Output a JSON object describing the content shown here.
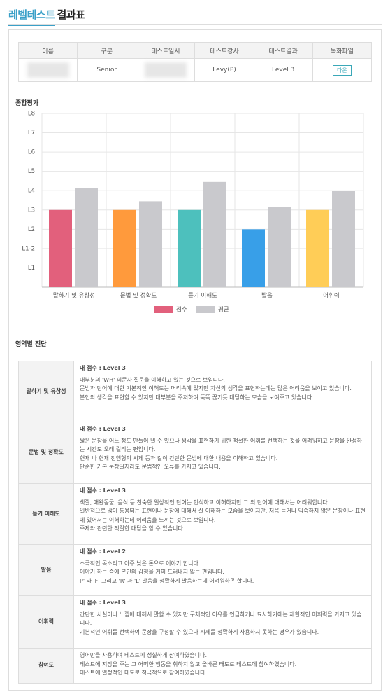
{
  "header": {
    "title_highlight": "레벨테스트",
    "title_rest": "결과표"
  },
  "info_table": {
    "headers": [
      "이름",
      "구분",
      "테스트일시",
      "테스트강사",
      "테스트결과",
      "녹화파일"
    ],
    "row": {
      "category": "Senior",
      "instructor": "Levy(P)",
      "result": "Level 3",
      "download_button": "다운"
    }
  },
  "chart_section_label": "종합평가",
  "chart_data": {
    "type": "bar",
    "categories": [
      "말하기 및 유창성",
      "문법 및 정확도",
      "듣기 이해도",
      "발음",
      "어휘력"
    ],
    "series": [
      {
        "name": "점수",
        "color": "#e2607c",
        "colors": [
          "#e2607c",
          "#ff9a3c",
          "#4dc0bd",
          "#389fe8",
          "#ffcd57"
        ],
        "values": [
          4,
          4,
          4,
          3,
          4
        ]
      },
      {
        "name": "평균",
        "color": "#c9c9cd",
        "values": [
          5.15,
          4.45,
          5.45,
          4.15,
          5.0
        ]
      }
    ],
    "ylim": [
      0,
      9
    ],
    "yticks": [
      {
        "value": 1,
        "label": "L1"
      },
      {
        "value": 2,
        "label": "L1-2"
      },
      {
        "value": 3,
        "label": "L2"
      },
      {
        "value": 4,
        "label": "L3"
      },
      {
        "value": 5,
        "label": "L4"
      },
      {
        "value": 6,
        "label": "L5"
      },
      {
        "value": 7,
        "label": "L6"
      },
      {
        "value": 8,
        "label": "L7"
      },
      {
        "value": 9,
        "label": "L8"
      }
    ],
    "grid": true,
    "legend": "bottom"
  },
  "diagnosis": {
    "title": "영역별 진단",
    "rows": [
      {
        "area": "말하기 및 유창성",
        "score": "내 점수 : Level 3",
        "lines": [
          "대부분의 'WH' 의문사 질문을 이해하고 있는 것으로 보입니다.",
          "문법과 단어에 대한 기본적인 이해도는 머리속에 있지만 자신의 생각을 표현하는데는 많은 어려움을 보이고 있습니다.",
          "본인의 생각을 표현할 수 있지만 대부분을 주저하며 뚝뚝 끊기듯 대답하는 모습을 보여주고 있습니다."
        ]
      },
      {
        "area": "문법 및 정확도",
        "score": "내 점수 : Level 3",
        "lines": [
          "짧은 문장을 어느 정도 만들어 낼 수 있으나 생각을 표현하기 위한 적절한 어휘를 선택하는 것을 어려워하고 문장을 완성하는 시간도 오래 걸리는 편입니다.",
          "현재 나 현재 진행형의 시제 등과 같이 간단한 문법에 대한 내용을 이해하고 있습니다.",
          "단순한 기본 문장일지라도 문법적인 오류를 가지고 있습니다."
        ]
      },
      {
        "area": "듣기 이해도",
        "score": "내 점수 : Level 3",
        "lines": [
          "색깔, 애완동물, 음식 등 친숙한 일상적인 단어는 인식하고 이해하지만 그 외 단어에 대해서는 어려워합니다.",
          "일반적으로 많이 통용되는 표현이나 문장에 대해서 잘 이해하는 모습을 보이지만, 처음 듣거나 익숙하지 않은 문장이나 표현에 있어서는 이해하는데 어려움을 느끼는 것으로 보입니다.",
          "주제와 관련한 적절한 대답을 할 수 있습니다."
        ]
      },
      {
        "area": "발음",
        "score": "내 점수 : Level 2",
        "lines": [
          "소극적인 목소리고 아주 낮은 톤으로 이야기 합니다.",
          "이야기 하는 중에 본인의 감정을 거의 드러내지 않는 편입니다.",
          "P' 와 'F' 그리고 'R' 과 'L' 발음을 정확하게 발음하는데 어려워하곤 합니다."
        ]
      },
      {
        "area": "어휘력",
        "score": "내 점수 : Level 3",
        "lines": [
          "간단한 사실이나 느낌에 대해서 말할 수 있지만 구체적인 이유를 언급하거나 묘사하기에는 제한적인 어휘력을 가지고 있습니다.",
          "기본적인 어휘를 선택하여 문장을 구성할 수 있으나 시제를 정확하게 사용하지 못하는 경우가 있습니다."
        ]
      },
      {
        "area": "참여도",
        "lines": [
          "영어만을 사용하여 테스트에 성실하게 참여하였습니다.",
          "테스트에 지장을 주는 그 어떠한 행동을 취하지 않고 올바른 태도로 테스트에 참여하였습니다.",
          "테스트에 열정적인 태도로 적극적으로 참여하였습니다."
        ]
      }
    ]
  }
}
